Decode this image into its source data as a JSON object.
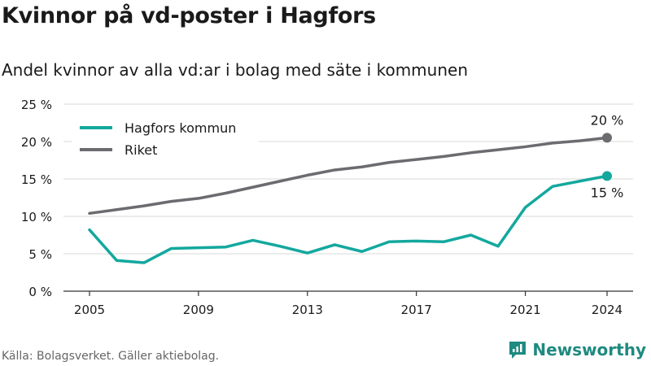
{
  "header": {
    "title": "Kvinnor på vd-poster i Hagfors",
    "subtitle": "Andel kvinnor av alla vd:ar i bolag med säte i kommunen"
  },
  "footer": {
    "source": "Källa: Bolagsverket. Gäller aktiebolag.",
    "brand": "Newsworthy"
  },
  "colors": {
    "hagfors": "#13a89e",
    "riket": "#6b6b70",
    "grid": "#d9d9d9",
    "axis": "#333333",
    "brand": "#1f8a80"
  },
  "brand_icon": "newsworthy-logo-icon",
  "chart_data": {
    "type": "line",
    "x": [
      2005,
      2006,
      2007,
      2008,
      2009,
      2010,
      2011,
      2012,
      2013,
      2014,
      2015,
      2016,
      2017,
      2018,
      2019,
      2020,
      2021,
      2022,
      2023,
      2024
    ],
    "x_ticks": [
      "2005",
      "2009",
      "2013",
      "2017",
      "2021",
      "2024"
    ],
    "y_ticks": [
      "0 %",
      "5 %",
      "10 %",
      "15 %",
      "20 %",
      "25 %"
    ],
    "ylim": [
      0,
      25
    ],
    "grid": true,
    "legend_position": "top-left",
    "series": [
      {
        "name": "Hagfors kommun",
        "values": [
          8.2,
          4.1,
          3.8,
          5.7,
          5.8,
          5.9,
          6.8,
          6.0,
          5.1,
          6.2,
          5.3,
          6.6,
          6.7,
          6.6,
          7.5,
          6.0,
          11.2,
          14.0,
          14.7,
          15.4
        ],
        "end_label": "15 %"
      },
      {
        "name": "Riket",
        "values": [
          10.4,
          10.9,
          11.4,
          12.0,
          12.4,
          13.1,
          13.9,
          14.7,
          15.5,
          16.2,
          16.6,
          17.2,
          17.6,
          18.0,
          18.5,
          18.9,
          19.3,
          19.8,
          20.1,
          20.5
        ],
        "end_label": "20 %"
      }
    ]
  }
}
